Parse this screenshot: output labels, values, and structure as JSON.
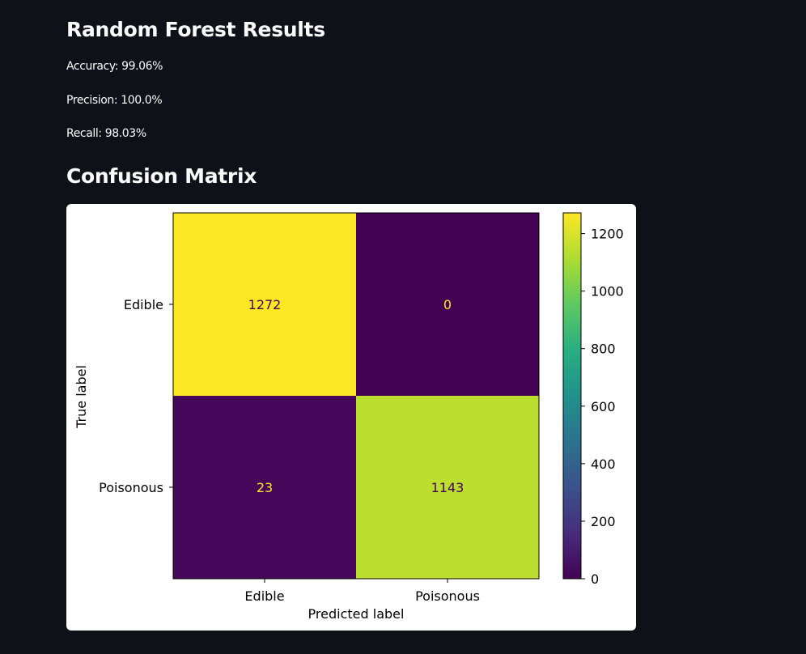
{
  "page": {
    "results_title": "Random Forest Results",
    "accuracy": "Accuracy: 99.06%",
    "precision": "Precision: 100.0%",
    "recall": "Recall: 98.03%",
    "confusion_title": "Confusion Matrix"
  },
  "chart_data": {
    "type": "heatmap",
    "title": "",
    "xlabel": "Predicted label",
    "ylabel": "True label",
    "x_categories": [
      "Edible",
      "Poisonous"
    ],
    "y_categories": [
      "Edible",
      "Poisonous"
    ],
    "matrix": [
      [
        1272,
        0
      ],
      [
        23,
        1143
      ]
    ],
    "cell_labels": [
      [
        "1272",
        "0"
      ],
      [
        "23",
        "1143"
      ]
    ],
    "colormap": "viridis",
    "colorbar": {
      "range": [
        0,
        1272
      ],
      "ticks": [
        0,
        200,
        400,
        600,
        800,
        1000,
        1200
      ],
      "tick_labels": [
        "0",
        "200",
        "400",
        "600",
        "800",
        "1000",
        "1200"
      ]
    },
    "grid": false
  }
}
